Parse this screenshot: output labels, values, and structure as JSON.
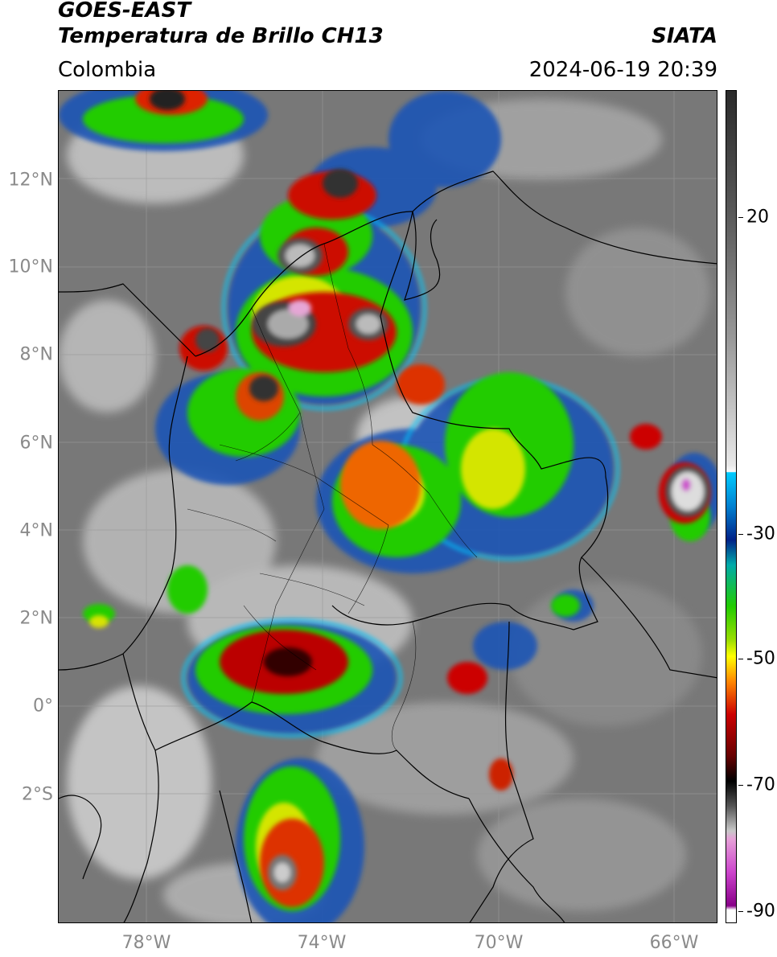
{
  "header": {
    "satellite": "GOES-EAST",
    "product": "Temperatura de Brillo CH13",
    "region": "Colombia",
    "agency": "SIATA",
    "timestamp": "2024-06-19 20:39"
  },
  "map": {
    "lon_range": [
      -80,
      -65
    ],
    "lat_range": [
      -5,
      14
    ],
    "lat_ticks": [
      {
        "value": 12,
        "label": "12°N"
      },
      {
        "value": 10,
        "label": "10°N"
      },
      {
        "value": 8,
        "label": "8°N"
      },
      {
        "value": 6,
        "label": "6°N"
      },
      {
        "value": 4,
        "label": "4°N"
      },
      {
        "value": 2,
        "label": "2°N"
      },
      {
        "value": 0,
        "label": "0°"
      },
      {
        "value": -2,
        "label": "2°S"
      }
    ],
    "lon_ticks": [
      {
        "value": -78,
        "label": "78°W"
      },
      {
        "value": -74,
        "label": "74°W"
      },
      {
        "value": -70,
        "label": "70°W"
      },
      {
        "value": -66,
        "label": "66°W"
      }
    ],
    "gridlines": true
  },
  "colorbar": {
    "range": [
      -92,
      37
    ],
    "ticks": [
      {
        "value": 20,
        "label": "20"
      },
      {
        "value": -30,
        "label": "-30"
      },
      {
        "value": -50,
        "label": "-50"
      },
      {
        "value": -70,
        "label": "-70"
      },
      {
        "value": -90,
        "label": "-90"
      }
    ],
    "colors": {
      "white_end": "#ffffff",
      "magenta": "#cc44cc",
      "black": "#000000",
      "red": "#cc0000",
      "orange": "#ff8800",
      "yellow": "#ffff00",
      "green": "#22cc00",
      "dark_blue": "#002288",
      "cyan": "#00ccff",
      "light_gray": "#e8e8e8",
      "dark_gray": "#2a2a2a"
    }
  }
}
